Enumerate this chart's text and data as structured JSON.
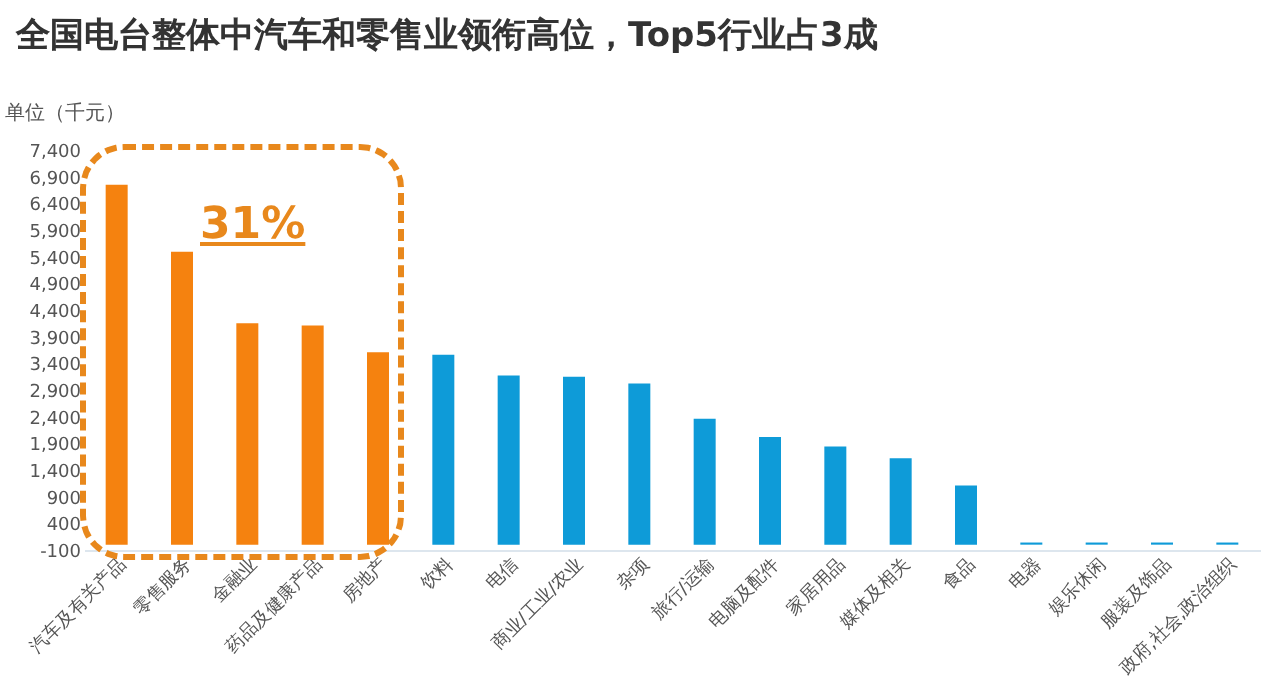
{
  "chart_data": {
    "type": "bar",
    "title": "全国电台整体中汽车和零售业领衔高位，Top5行业占3成",
    "ylabel": "单位（千元）",
    "annotations": [
      "31%"
    ],
    "categories": [
      "汽车及有关产品",
      "零售服务",
      "金融业",
      "药品及健康产品",
      "房地产",
      "饮料",
      "电信",
      "商业/工业/农业",
      "杂项",
      "旅行/运输",
      "电脑及配件",
      "家居用品",
      "媒体及相关",
      "食品",
      "电器",
      "娱乐休闲",
      "服装及饰品",
      "政府,社会,政治组织"
    ],
    "values": [
      6750,
      5490,
      4150,
      4110,
      3610,
      3560,
      3170,
      3150,
      3020,
      2360,
      2020,
      1840,
      1620,
      1110,
      40,
      40,
      40,
      40
    ],
    "colors": [
      "#f5820f",
      "#f5820f",
      "#f5820f",
      "#f5820f",
      "#f5820f",
      "#0e9bd8",
      "#0e9bd8",
      "#0e9bd8",
      "#0e9bd8",
      "#0e9bd8",
      "#0e9bd8",
      "#0e9bd8",
      "#0e9bd8",
      "#0e9bd8",
      "#0e9bd8",
      "#0e9bd8",
      "#0e9bd8",
      "#0e9bd8"
    ],
    "ylim": [
      -100,
      7400
    ],
    "yticks": [
      -100,
      400,
      900,
      {
        "value": 1400,
        "label": "1,400"
      },
      {
        "value": 1900,
        "label": "1,900"
      },
      {
        "value": 2400,
        "label": "2,400"
      },
      {
        "value": 2900,
        "label": "2,900"
      },
      {
        "value": 3400,
        "label": "3,400"
      },
      {
        "value": 3900,
        "label": "3,900"
      },
      {
        "value": 4400,
        "label": "4,400"
      },
      {
        "value": 4900,
        "label": "4,900"
      },
      {
        "value": 5400,
        "label": "5,400"
      },
      {
        "value": 5900,
        "label": "5,900"
      },
      {
        "value": 6400,
        "label": "6,400"
      },
      {
        "value": 6900,
        "label": "6,900"
      },
      {
        "value": 7400,
        "label": "7,400"
      }
    ],
    "grid": false
  }
}
